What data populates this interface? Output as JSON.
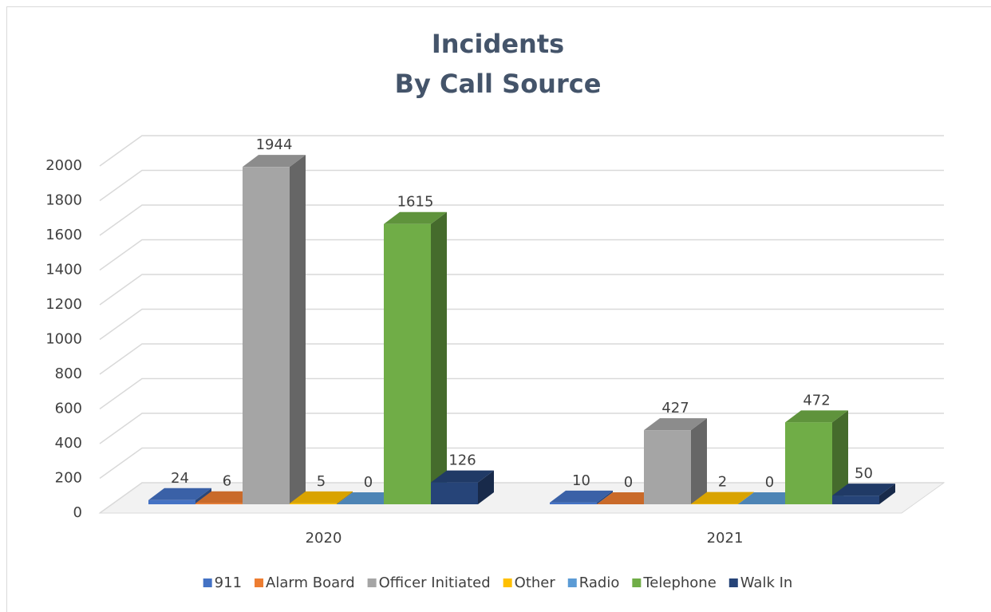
{
  "chart_data": {
    "type": "bar3d",
    "title": [
      "Incidents",
      "By Call Source"
    ],
    "categories": [
      "2020",
      "2021"
    ],
    "series": [
      {
        "name": "911",
        "color": "#4472c4",
        "values": [
          24,
          10
        ]
      },
      {
        "name": "Alarm Board",
        "color": "#ed7d31",
        "values": [
          6,
          0
        ]
      },
      {
        "name": "Officer Initiated",
        "color": "#a5a5a5",
        "values": [
          1944,
          427
        ]
      },
      {
        "name": "Other",
        "color": "#ffc000",
        "values": [
          5,
          2
        ]
      },
      {
        "name": "Radio",
        "color": "#5b9bd5",
        "values": [
          0,
          0
        ]
      },
      {
        "name": "Telephone",
        "color": "#70ad47",
        "values": [
          1615,
          472
        ]
      },
      {
        "name": "Walk In",
        "color": "#264478",
        "values": [
          126,
          50
        ]
      }
    ],
    "ylim": [
      0,
      2000
    ],
    "yticks": [
      0,
      200,
      400,
      600,
      800,
      1000,
      1200,
      1400,
      1600,
      1800,
      2000
    ],
    "grid": true,
    "legend": "bottom"
  }
}
